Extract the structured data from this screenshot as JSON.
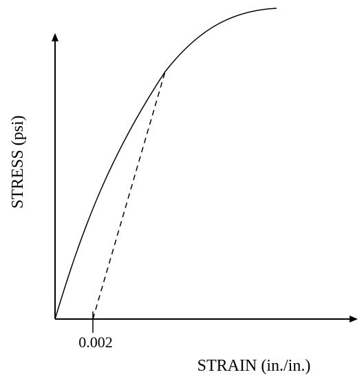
{
  "chart_data": {
    "type": "line",
    "xlabel": "STRAIN (in./in.)",
    "ylabel": "STRESS (psi)",
    "x_tick_labels": [
      "0.002"
    ],
    "series": [
      {
        "style": "solid",
        "description": "stress-strain curve (concave down)"
      },
      {
        "style": "dashed",
        "description": "offset line from strain 0.002, parallel to the initial slope"
      }
    ],
    "offset_strain": 0.002,
    "colors": {
      "line": "#000000",
      "background": "#ffffff"
    }
  }
}
